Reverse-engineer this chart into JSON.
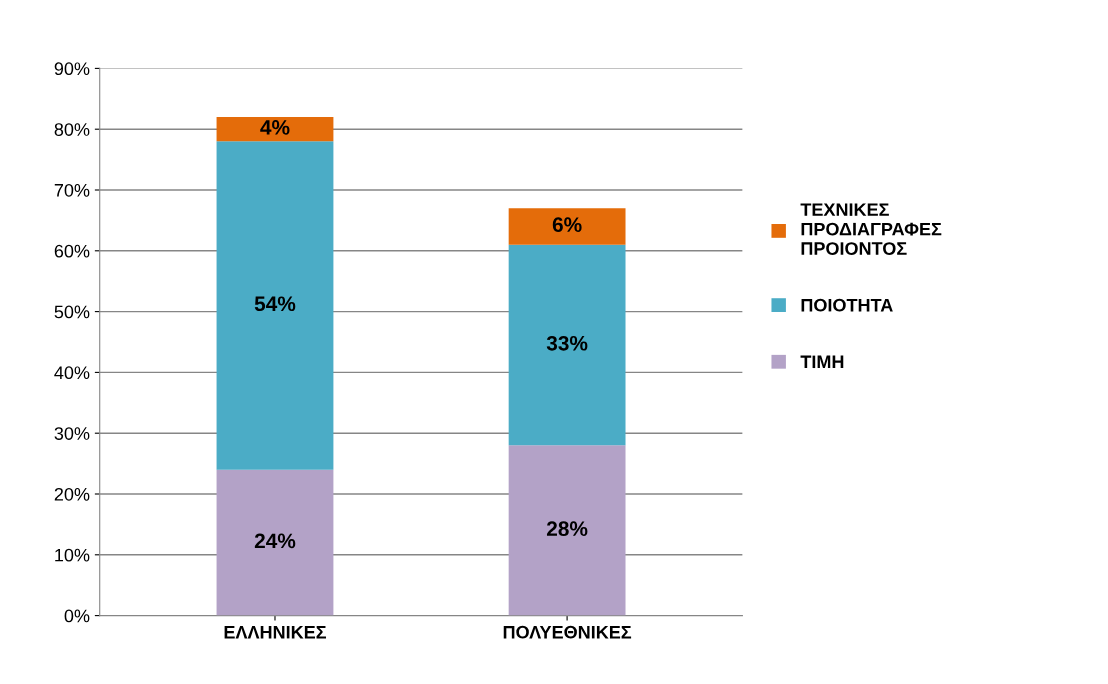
{
  "chart_data": {
    "type": "bar",
    "stacked": true,
    "categories": [
      "ΕΛΛΗΝΙΚΕΣ",
      "ΠΟΛΥΕΘΝΙΚΕΣ"
    ],
    "series": [
      {
        "name": "ΤΙΜΗ",
        "color": "#b3a2c7",
        "values": [
          24,
          28
        ],
        "value_labels": [
          "24%",
          "28%"
        ]
      },
      {
        "name": "ΠΟΙΟΤΗΤΑ",
        "color": "#4bacc6",
        "values": [
          54,
          33
        ],
        "value_labels": [
          "54%",
          "33%"
        ]
      },
      {
        "name": "ΤΕΧΝΙΚΕΣ\nΠΡΟΔΙΑΓΡΑΦΕΣ\nΠΡΟΙΟΝΤΟΣ",
        "color": "#e46c0a",
        "values": [
          4,
          6
        ],
        "value_labels": [
          "4%",
          "6%"
        ]
      }
    ],
    "ylim": [
      0,
      90
    ],
    "yticks": [
      {
        "value": 0,
        "label": "0%"
      },
      {
        "value": 10,
        "label": "10%"
      },
      {
        "value": 20,
        "label": "20%"
      },
      {
        "value": 30,
        "label": "30%"
      },
      {
        "value": 40,
        "label": "40%"
      },
      {
        "value": 50,
        "label": "50%"
      },
      {
        "value": 60,
        "label": "60%"
      },
      {
        "value": 70,
        "label": "70%"
      },
      {
        "value": 80,
        "label": "80%"
      },
      {
        "value": 90,
        "label": "90%"
      }
    ],
    "grid": "y",
    "legend": "right"
  }
}
